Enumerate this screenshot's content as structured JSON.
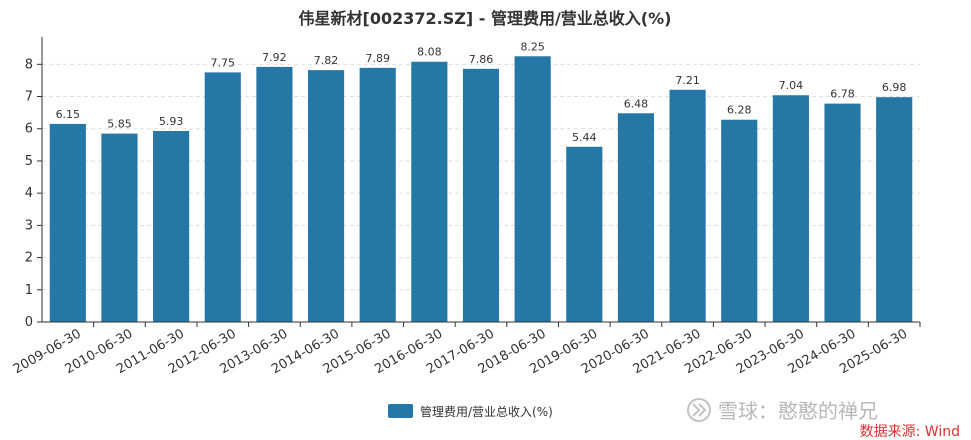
{
  "chart_data": {
    "type": "bar",
    "title": "伟星新材[002372.SZ] - 管理费用/营业总收入(%)",
    "categories": [
      "2009-06-30",
      "2010-06-30",
      "2011-06-30",
      "2012-06-30",
      "2013-06-30",
      "2014-06-30",
      "2015-06-30",
      "2016-06-30",
      "2017-06-30",
      "2018-06-30",
      "2019-06-30",
      "2020-06-30",
      "2021-06-30",
      "2022-06-30",
      "2023-06-30",
      "2024-06-30",
      "2025-06-30"
    ],
    "series": [
      {
        "name": "管理费用/营业总收入(%)",
        "values": [
          6.15,
          5.85,
          5.93,
          7.75,
          7.92,
          7.82,
          7.89,
          8.08,
          7.86,
          8.25,
          5.44,
          6.48,
          7.21,
          6.28,
          7.04,
          6.78,
          6.98
        ]
      }
    ],
    "ylim": [
      0,
      8.6
    ],
    "yticks": [
      0,
      1,
      2,
      3,
      4,
      5,
      6,
      7,
      8
    ],
    "grid": true,
    "legend_position": "bottom-center",
    "bar_color": "#2577a6"
  },
  "watermark": "雪球：憨憨的禅兄",
  "source": "数据来源: Wind"
}
